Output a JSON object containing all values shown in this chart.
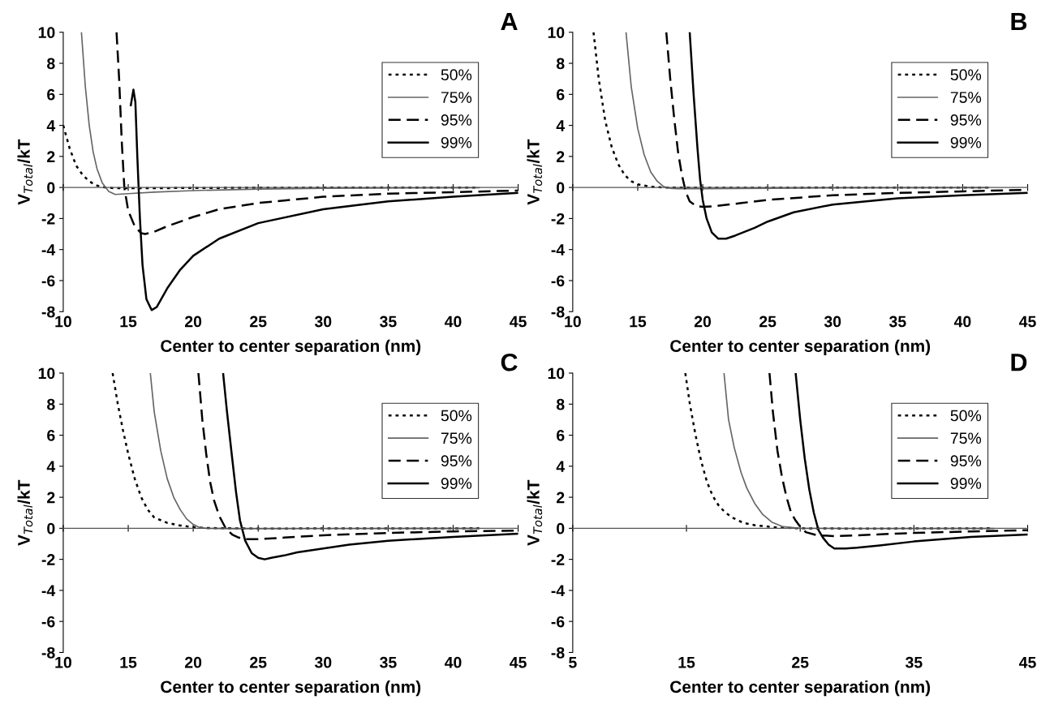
{
  "chart_data": [
    {
      "type": "line",
      "title": "A",
      "xlabel": "Center to center separation (nm)",
      "ylabel": "V$_{Total}$/kT",
      "xlim": [
        10,
        45
      ],
      "xticks": [
        10,
        15,
        20,
        25,
        30,
        35,
        40,
        45
      ],
      "ylim": [
        -8,
        10
      ],
      "yticks": [
        -8,
        -6,
        -4,
        -2,
        0,
        2,
        4,
        6,
        8,
        10
      ],
      "legend": "top right",
      "marker": "none",
      "series": [
        {
          "name": "50%",
          "color": "#000000",
          "line_style": "dotted",
          "x": [
            10,
            10.5,
            11,
            11.5,
            12,
            12.5,
            13,
            14,
            16,
            20,
            30,
            42
          ],
          "values": [
            4,
            2.5,
            1.4,
            0.8,
            0.4,
            0.15,
            0.02,
            -0.05,
            -0.05,
            -0.03,
            -0.01,
            0
          ]
        },
        {
          "name": "75%",
          "color": "#666666",
          "line_style": "solid",
          "x": [
            11.4,
            11.7,
            12,
            12.3,
            12.6,
            13,
            13.5,
            14,
            15,
            17,
            20,
            25,
            30,
            42
          ],
          "values": [
            10,
            6.5,
            4,
            2.3,
            1.2,
            0.3,
            -0.25,
            -0.45,
            -0.4,
            -0.3,
            -0.2,
            -0.1,
            -0.05,
            -0.02
          ]
        },
        {
          "name": "95%",
          "color": "#000000",
          "line_style": "dashed",
          "x": [
            14.1,
            14.3,
            14.5,
            14.7,
            15,
            15.5,
            16,
            16.3,
            17,
            18,
            20,
            22,
            25,
            30,
            35,
            40,
            45
          ],
          "values": [
            10,
            7,
            3,
            0,
            -1.5,
            -2.5,
            -2.95,
            -3,
            -2.85,
            -2.5,
            -1.9,
            -1.4,
            -1,
            -0.6,
            -0.4,
            -0.3,
            -0.2
          ]
        },
        {
          "name": "99%",
          "color": "#000000",
          "line_style": "solid",
          "x": [
            15.2,
            15.4,
            15.55,
            15.7,
            15.9,
            16.1,
            16.4,
            16.8,
            17.2,
            18,
            19,
            20,
            22,
            25,
            30,
            35,
            40,
            45
          ],
          "values": [
            5.3,
            6.3,
            5.5,
            2,
            -2,
            -5,
            -7.2,
            -7.9,
            -7.7,
            -6.5,
            -5.3,
            -4.4,
            -3.3,
            -2.3,
            -1.4,
            -0.9,
            -0.6,
            -0.35
          ]
        }
      ]
    },
    {
      "type": "line",
      "title": "B",
      "xlabel": "Center to center separation (nm)",
      "ylabel": "V$_{Total}$/kT",
      "xlim": [
        10,
        45
      ],
      "xticks": [
        10,
        15,
        20,
        25,
        30,
        35,
        40,
        45
      ],
      "ylim": [
        -8,
        10
      ],
      "yticks": [
        -8,
        -6,
        -4,
        -2,
        0,
        2,
        4,
        6,
        8,
        10
      ],
      "legend": "top right",
      "marker": "none",
      "series": [
        {
          "name": "50%",
          "color": "#000000",
          "line_style": "dotted",
          "x": [
            11.6,
            12,
            12.5,
            13,
            13.5,
            14,
            14.5,
            15,
            16,
            17,
            20,
            30,
            42
          ],
          "values": [
            10,
            7,
            4.3,
            2.6,
            1.5,
            0.8,
            0.4,
            0.2,
            0.05,
            0,
            -0.02,
            -0.01,
            0
          ]
        },
        {
          "name": "75%",
          "color": "#666666",
          "line_style": "solid",
          "x": [
            14.1,
            14.5,
            15,
            15.5,
            16,
            16.5,
            17,
            17.5,
            18,
            20,
            25,
            30,
            42
          ],
          "values": [
            10,
            6.5,
            3.8,
            2.1,
            1,
            0.4,
            0.05,
            -0.05,
            -0.08,
            -0.08,
            -0.05,
            -0.03,
            -0.01
          ]
        },
        {
          "name": "95%",
          "color": "#000000",
          "line_style": "dashed",
          "x": [
            17.2,
            17.5,
            17.8,
            18.1,
            18.4,
            18.7,
            19,
            19.5,
            20,
            21,
            23,
            25,
            30,
            35,
            40,
            45
          ],
          "values": [
            10,
            7,
            4.5,
            2.3,
            0.8,
            -0.3,
            -0.9,
            -1.2,
            -1.25,
            -1.2,
            -1,
            -0.8,
            -0.5,
            -0.35,
            -0.25,
            -0.15
          ]
        },
        {
          "name": "99%",
          "color": "#000000",
          "line_style": "solid",
          "x": [
            19,
            19.3,
            19.6,
            19.8,
            20,
            20.3,
            20.7,
            21.2,
            21.8,
            22.5,
            24,
            25,
            27,
            30,
            35,
            40,
            45
          ],
          "values": [
            10,
            6,
            2.5,
            0.5,
            -0.8,
            -2,
            -2.9,
            -3.3,
            -3.3,
            -3.1,
            -2.6,
            -2.2,
            -1.6,
            -1.1,
            -0.7,
            -0.5,
            -0.35
          ]
        }
      ]
    },
    {
      "type": "line",
      "title": "C",
      "xlabel": "Center to center separation (nm)",
      "ylabel": "V$_{Total}$/kT",
      "xlim": [
        10,
        45
      ],
      "xticks": [
        10,
        15,
        20,
        25,
        30,
        35,
        40,
        45
      ],
      "ylim": [
        -8,
        10
      ],
      "yticks": [
        -8,
        -6,
        -4,
        -2,
        0,
        2,
        4,
        6,
        8,
        10
      ],
      "legend": "top right",
      "marker": "none",
      "series": [
        {
          "name": "50%",
          "color": "#000000",
          "line_style": "dotted",
          "x": [
            13.8,
            14.2,
            14.6,
            15,
            15.5,
            16,
            16.5,
            17,
            18,
            19,
            20,
            21,
            25,
            30,
            42
          ],
          "values": [
            10,
            8,
            6.3,
            4.8,
            3.2,
            2,
            1.2,
            0.7,
            0.35,
            0.18,
            0.08,
            0.02,
            -0.02,
            -0.01,
            0
          ]
        },
        {
          "name": "75%",
          "color": "#666666",
          "line_style": "solid",
          "x": [
            16.7,
            17,
            17.5,
            18,
            18.5,
            19,
            19.5,
            20,
            20.5,
            21,
            23,
            30,
            42
          ],
          "values": [
            10,
            7.5,
            5,
            3.2,
            2,
            1.2,
            0.6,
            0.25,
            0.05,
            0,
            -0.03,
            -0.02,
            -0.01
          ]
        },
        {
          "name": "95%",
          "color": "#000000",
          "line_style": "dashed",
          "x": [
            20.4,
            20.7,
            21,
            21.3,
            21.6,
            22,
            22.5,
            23,
            23.5,
            24,
            25,
            27,
            30,
            35,
            40,
            45
          ],
          "values": [
            10,
            7,
            4.8,
            3,
            1.8,
            0.8,
            0,
            -0.4,
            -0.6,
            -0.7,
            -0.7,
            -0.6,
            -0.45,
            -0.3,
            -0.2,
            -0.15
          ]
        },
        {
          "name": "99%",
          "color": "#000000",
          "line_style": "solid",
          "x": [
            22.3,
            22.6,
            23,
            23.3,
            23.6,
            24,
            24.5,
            25,
            25.5,
            26,
            27,
            28,
            30,
            32,
            35,
            40,
            45
          ],
          "values": [
            10,
            7.5,
            4.5,
            2.3,
            0.5,
            -0.8,
            -1.6,
            -1.9,
            -2,
            -1.9,
            -1.75,
            -1.55,
            -1.3,
            -1.05,
            -0.8,
            -0.55,
            -0.35
          ]
        }
      ]
    },
    {
      "type": "line",
      "title": "D",
      "xlabel": "Center to center separation (nm)",
      "ylabel": "V$_{Total}$/kT",
      "xlim": [
        5,
        45
      ],
      "xticks": [
        5,
        15,
        25,
        35,
        45
      ],
      "ylim": [
        -8,
        10
      ],
      "yticks": [
        -8,
        -6,
        -4,
        -2,
        0,
        2,
        4,
        6,
        8,
        10
      ],
      "legend": "top right",
      "marker": "none",
      "series": [
        {
          "name": "50%",
          "color": "#000000",
          "line_style": "dotted",
          "x": [
            14.9,
            15.3,
            15.8,
            16.3,
            16.8,
            17.3,
            17.8,
            18.3,
            19,
            20,
            21,
            23,
            25,
            30,
            42
          ],
          "values": [
            10,
            8,
            6,
            4.3,
            3,
            2.1,
            1.5,
            1.1,
            0.7,
            0.35,
            0.2,
            0.05,
            0,
            -0.02,
            0
          ]
        },
        {
          "name": "75%",
          "color": "#666666",
          "line_style": "solid",
          "x": [
            18.3,
            18.7,
            19.2,
            19.8,
            20.3,
            21,
            21.7,
            22.5,
            23.5,
            25,
            30,
            42
          ],
          "values": [
            10,
            7,
            5.2,
            3.6,
            2.6,
            1.6,
            0.9,
            0.4,
            0.1,
            0,
            -0.02,
            -0.01
          ]
        },
        {
          "name": "95%",
          "color": "#000000",
          "line_style": "dashed",
          "x": [
            22.3,
            22.6,
            23,
            23.4,
            23.8,
            24.2,
            24.6,
            25,
            25.5,
            26.5,
            28,
            30,
            35,
            40,
            45
          ],
          "values": [
            10,
            7.5,
            5,
            3.3,
            2,
            1,
            0.5,
            0.1,
            -0.25,
            -0.45,
            -0.5,
            -0.45,
            -0.3,
            -0.2,
            -0.12
          ]
        },
        {
          "name": "99%",
          "color": "#000000",
          "line_style": "solid",
          "x": [
            24.6,
            25,
            25.4,
            25.8,
            26.2,
            26.6,
            27,
            27.5,
            28,
            29,
            30,
            32,
            35,
            40,
            45
          ],
          "values": [
            10,
            7,
            4.5,
            2.5,
            1,
            -0.1,
            -0.6,
            -1.05,
            -1.3,
            -1.3,
            -1.25,
            -1.1,
            -0.85,
            -0.55,
            -0.4
          ]
        }
      ]
    }
  ]
}
